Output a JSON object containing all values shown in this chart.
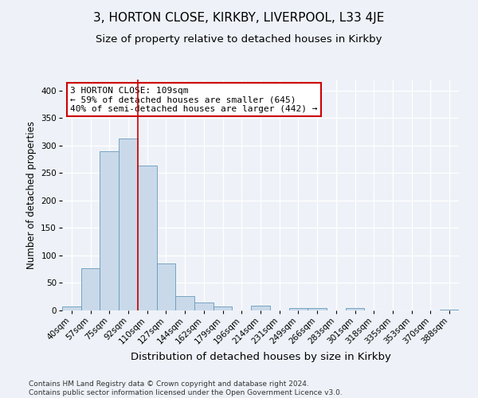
{
  "title1": "3, HORTON CLOSE, KIRKBY, LIVERPOOL, L33 4JE",
  "title2": "Size of property relative to detached houses in Kirkby",
  "xlabel": "Distribution of detached houses by size in Kirkby",
  "ylabel": "Number of detached properties",
  "bin_labels": [
    "40sqm",
    "57sqm",
    "75sqm",
    "92sqm",
    "110sqm",
    "127sqm",
    "144sqm",
    "162sqm",
    "179sqm",
    "196sqm",
    "214sqm",
    "231sqm",
    "249sqm",
    "266sqm",
    "283sqm",
    "301sqm",
    "318sqm",
    "335sqm",
    "353sqm",
    "370sqm",
    "388sqm"
  ],
  "bar_heights": [
    7,
    77,
    290,
    313,
    263,
    85,
    26,
    15,
    7,
    0,
    8,
    0,
    4,
    4,
    0,
    4,
    0,
    0,
    0,
    0,
    2
  ],
  "bar_color": "#c9d9ea",
  "bar_edge_color": "#6699bb",
  "property_line_color": "#cc0000",
  "annotation_text": "3 HORTON CLOSE: 109sqm\n← 59% of detached houses are smaller (645)\n40% of semi-detached houses are larger (442) →",
  "annotation_box_color": "#ffffff",
  "annotation_box_edge": "#cc0000",
  "ylim": [
    0,
    420
  ],
  "yticks": [
    0,
    50,
    100,
    150,
    200,
    250,
    300,
    350,
    400
  ],
  "footer": "Contains HM Land Registry data © Crown copyright and database right 2024.\nContains public sector information licensed under the Open Government Licence v3.0.",
  "background_color": "#eef2f8",
  "grid_color": "#ffffff",
  "title1_fontsize": 11,
  "title2_fontsize": 9.5,
  "xlabel_fontsize": 9.5,
  "ylabel_fontsize": 8.5,
  "tick_fontsize": 7.5,
  "annotation_fontsize": 8,
  "footer_fontsize": 6.5
}
